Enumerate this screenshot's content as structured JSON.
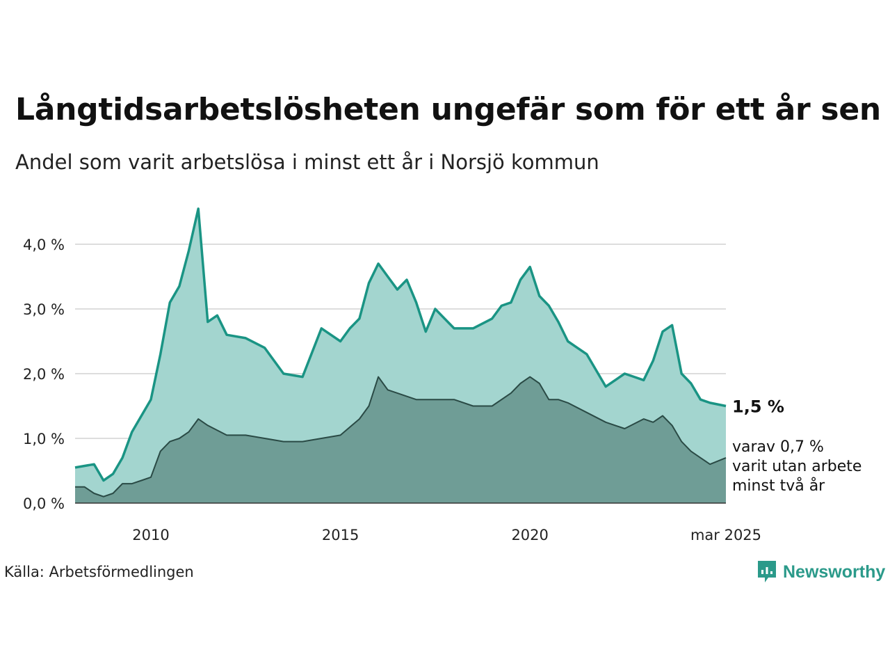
{
  "title": "Långtidsarbetslösheten ungefär som för ett år sen",
  "subtitle": "Andel som varit arbetslösa i minst ett år i Norsjö kommun",
  "source": "Källa: Arbetsförmedlingen",
  "brand": "Newsworthy",
  "colors": {
    "series1_fill": "#a3d5cf",
    "series1_line": "#1a9484",
    "series2_fill": "#6f9d96",
    "series2_line": "#2a4a45",
    "grid": "#dddddd"
  },
  "chart_data": {
    "type": "area",
    "y_ticks": [
      "0,0 %",
      "1,0 %",
      "2,0 %",
      "3,0 %",
      "4,0 %"
    ],
    "y_tick_values": [
      0,
      1,
      2,
      3,
      4
    ],
    "ylim": [
      0,
      4.6
    ],
    "x_ticks": [
      "2010",
      "2015",
      "2020",
      "mar 2025"
    ],
    "x_tick_values": [
      2010,
      2015,
      2020,
      2025.17
    ],
    "xlim": [
      2008,
      2025.17
    ],
    "grid": true,
    "series": [
      {
        "name": "",
        "end_label": "1,5 %",
        "x": [
          2008.0,
          2008.5,
          2008.75,
          2009.0,
          2009.25,
          2009.5,
          2009.75,
          2010.0,
          2010.25,
          2010.5,
          2010.75,
          2011.0,
          2011.25,
          2011.5,
          2011.75,
          2012.0,
          2012.5,
          2013.0,
          2013.5,
          2014.0,
          2014.5,
          2015.0,
          2015.25,
          2015.5,
          2015.75,
          2016.0,
          2016.25,
          2016.5,
          2016.75,
          2017.0,
          2017.25,
          2017.5,
          2018.0,
          2018.5,
          2019.0,
          2019.25,
          2019.5,
          2019.75,
          2020.0,
          2020.25,
          2020.5,
          2020.75,
          2021.0,
          2021.25,
          2021.5,
          2022.0,
          2022.5,
          2022.75,
          2023.0,
          2023.25,
          2023.5,
          2023.75,
          2024.0,
          2024.25,
          2024.5,
          2024.75,
          2025.17
        ],
        "values": [
          0.55,
          0.6,
          0.35,
          0.45,
          0.7,
          1.1,
          1.35,
          1.6,
          2.3,
          3.1,
          3.35,
          3.9,
          4.55,
          2.8,
          2.9,
          2.6,
          2.55,
          2.4,
          2.0,
          1.95,
          2.7,
          2.5,
          2.7,
          2.85,
          3.4,
          3.7,
          3.5,
          3.3,
          3.45,
          3.1,
          2.65,
          3.0,
          2.7,
          2.7,
          2.85,
          3.05,
          3.1,
          3.45,
          3.65,
          3.2,
          3.05,
          2.8,
          2.5,
          2.4,
          2.3,
          1.8,
          2.0,
          1.95,
          1.9,
          2.2,
          2.65,
          2.75,
          2.0,
          1.85,
          1.6,
          1.55,
          1.5
        ]
      },
      {
        "name": "",
        "end_label": [
          "varav 0,7 %",
          "varit utan arbete",
          "minst två år"
        ],
        "x": [
          2008.0,
          2008.25,
          2008.5,
          2008.75,
          2009.0,
          2009.25,
          2009.5,
          2009.75,
          2010.0,
          2010.25,
          2010.5,
          2010.75,
          2011.0,
          2011.25,
          2011.5,
          2012.0,
          2012.5,
          2013.0,
          2013.5,
          2014.0,
          2014.5,
          2015.0,
          2015.5,
          2015.75,
          2016.0,
          2016.25,
          2016.5,
          2017.0,
          2017.5,
          2018.0,
          2018.5,
          2019.0,
          2019.5,
          2019.75,
          2020.0,
          2020.25,
          2020.5,
          2020.75,
          2021.0,
          2021.5,
          2022.0,
          2022.5,
          2023.0,
          2023.25,
          2023.5,
          2023.75,
          2024.0,
          2024.25,
          2024.5,
          2024.75,
          2025.17
        ],
        "values": [
          0.25,
          0.25,
          0.15,
          0.1,
          0.15,
          0.3,
          0.3,
          0.35,
          0.4,
          0.8,
          0.95,
          1.0,
          1.1,
          1.3,
          1.2,
          1.05,
          1.05,
          1.0,
          0.95,
          0.95,
          1.0,
          1.05,
          1.3,
          1.5,
          1.95,
          1.75,
          1.7,
          1.6,
          1.6,
          1.6,
          1.5,
          1.5,
          1.7,
          1.85,
          1.95,
          1.85,
          1.6,
          1.6,
          1.55,
          1.4,
          1.25,
          1.15,
          1.3,
          1.25,
          1.35,
          1.2,
          0.95,
          0.8,
          0.7,
          0.6,
          0.7
        ]
      }
    ]
  }
}
